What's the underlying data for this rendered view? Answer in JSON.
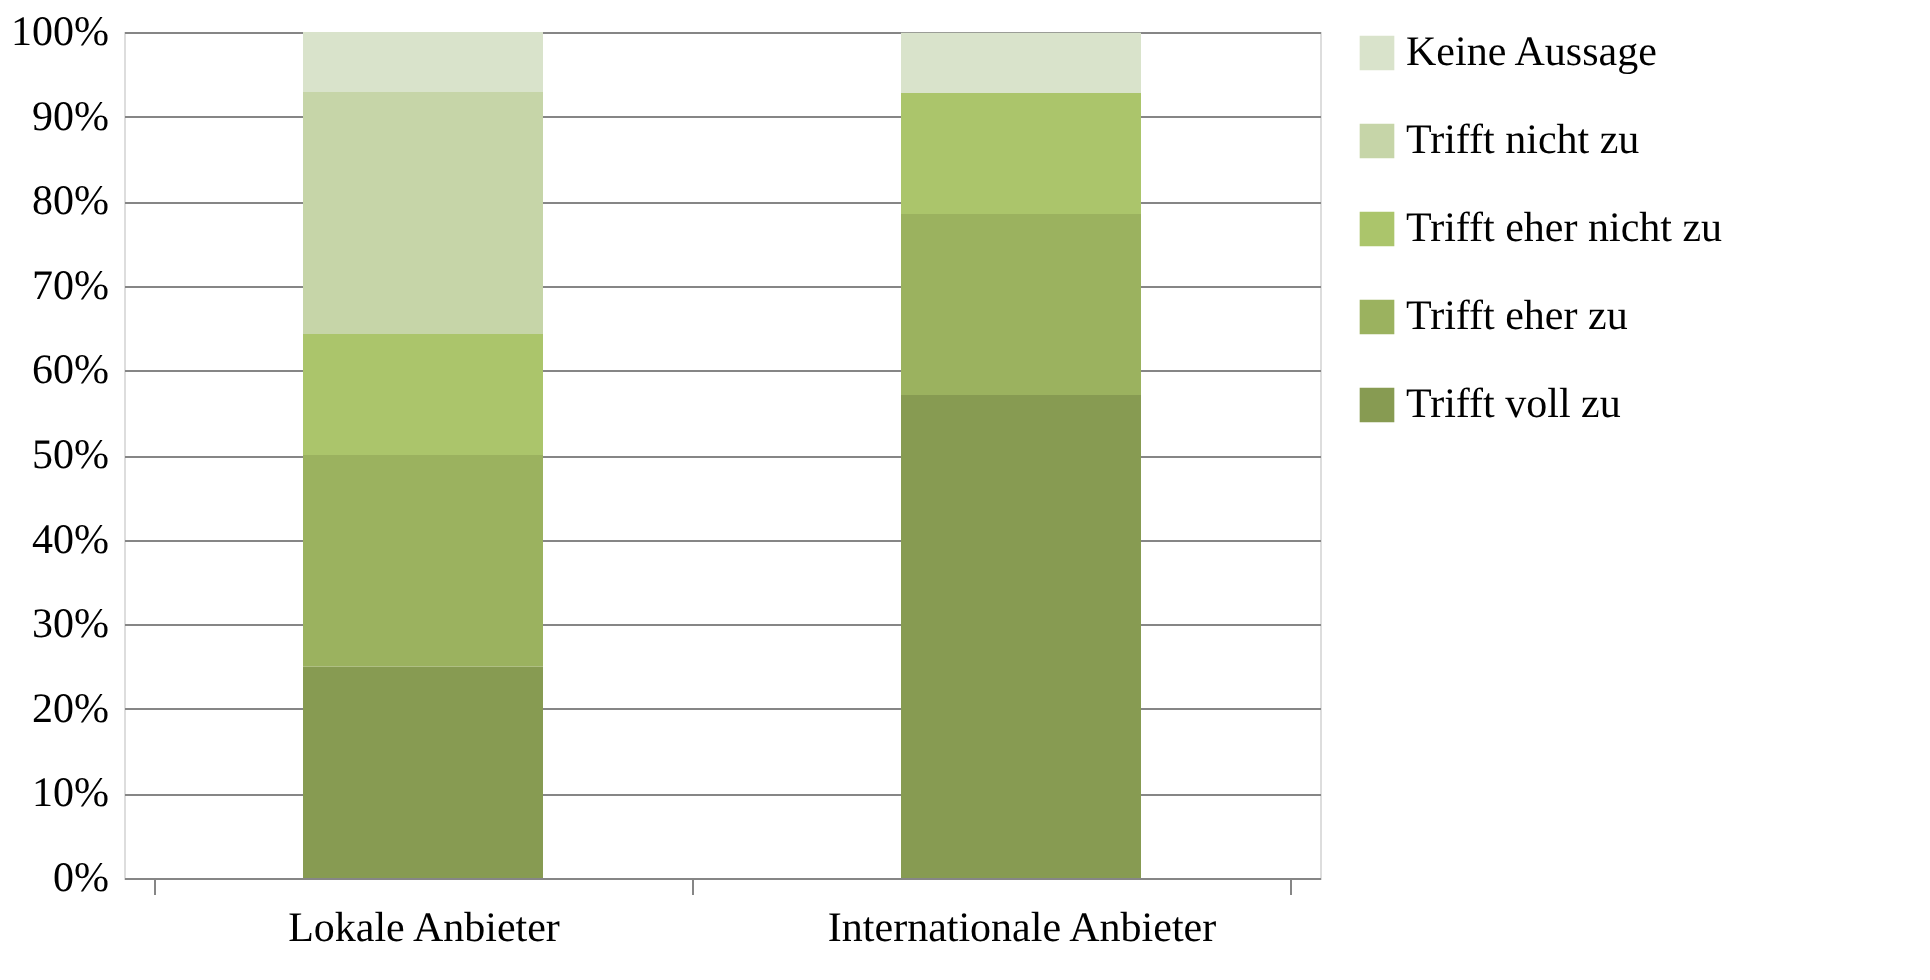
{
  "chart_data": {
    "type": "bar",
    "stacked": true,
    "categories": [
      "Lokale Anbieter",
      "Internationale Anbieter"
    ],
    "series": [
      {
        "name": "Trifft voll zu",
        "color": "#879b52",
        "values": [
          25,
          57.1
        ]
      },
      {
        "name": "Trifft eher zu",
        "color": "#9bb25f",
        "values": [
          25,
          21.4
        ]
      },
      {
        "name": "Trifft eher nicht zu",
        "color": "#abc56b",
        "values": [
          14.3,
          14.3
        ]
      },
      {
        "name": "Trifft nicht zu",
        "color": "#c6d5a8",
        "values": [
          28.6,
          0
        ]
      },
      {
        "name": "Keine Aussage",
        "color": "#d9e3cb",
        "values": [
          7.1,
          7.1
        ]
      }
    ],
    "ylim": [
      0,
      100
    ],
    "yticks": [
      {
        "value": 0,
        "label": "0%"
      },
      {
        "value": 10,
        "label": "10%"
      },
      {
        "value": 20,
        "label": "20%"
      },
      {
        "value": 30,
        "label": "30%"
      },
      {
        "value": 40,
        "label": "40%"
      },
      {
        "value": 50,
        "label": "50%"
      },
      {
        "value": 60,
        "label": "60%"
      },
      {
        "value": 70,
        "label": "70%"
      },
      {
        "value": 80,
        "label": "80%"
      },
      {
        "value": 90,
        "label": "90%"
      },
      {
        "value": 100,
        "label": "100%"
      }
    ],
    "grid": "y",
    "legend": "right"
  }
}
